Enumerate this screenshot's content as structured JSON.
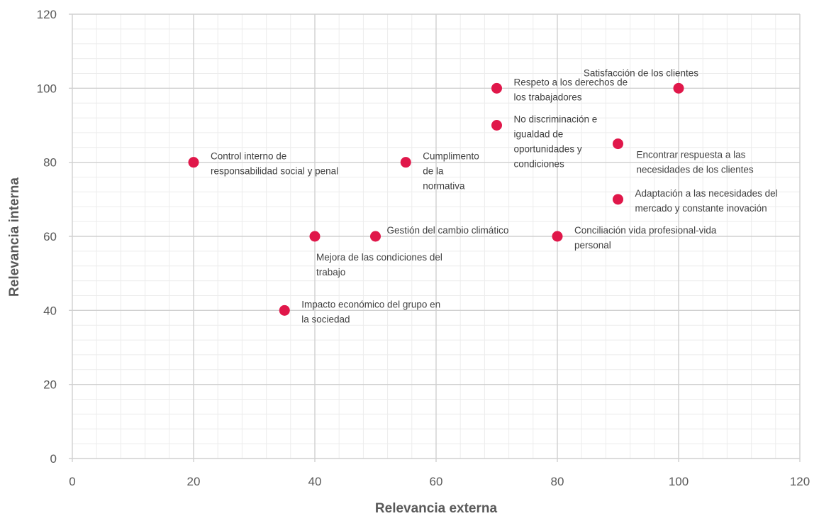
{
  "chart_data": {
    "type": "scatter",
    "xlabel": "Relevancia externa",
    "ylabel": "Relevancia interna",
    "xlim": [
      0,
      120
    ],
    "ylim": [
      0,
      120
    ],
    "x_ticks": [
      "0",
      "20",
      "40",
      "60",
      "80",
      "100",
      "120"
    ],
    "y_ticks": [
      "0",
      "20",
      "40",
      "60",
      "80",
      "100",
      "120"
    ],
    "major_step": 20,
    "minor_step": 4,
    "grid": true,
    "marker_color": "#e0174a",
    "points": [
      {
        "x": 20,
        "y": 80,
        "label": [
          "Control interno de",
          "responsabilidad social y penal"
        ],
        "pos": "right"
      },
      {
        "x": 35,
        "y": 40,
        "label": [
          "Impacto económico del grupo en",
          "la sociedad"
        ],
        "pos": "right"
      },
      {
        "x": 40,
        "y": 60,
        "label": [
          "Mejora de las condiciones del",
          "trabajo"
        ],
        "pos": "below"
      },
      {
        "x": 50,
        "y": 60,
        "label": [
          "Gestión del cambio climático"
        ],
        "pos": "right-up"
      },
      {
        "x": 55,
        "y": 80,
        "label": [
          "Cumplimento",
          "de la",
          "normativa"
        ],
        "pos": "right"
      },
      {
        "x": 70,
        "y": 100,
        "label": [
          "Respeto a los derechos de",
          "los trabajadores"
        ],
        "pos": "right"
      },
      {
        "x": 70,
        "y": 90,
        "label": [
          "No discriminación e",
          "igualdad de",
          "oportunidades y",
          "condiciones"
        ],
        "pos": "right"
      },
      {
        "x": 80,
        "y": 60,
        "label": [
          "Conciliación vida profesional-vida",
          "personal"
        ],
        "pos": "right"
      },
      {
        "x": 90,
        "y": 85,
        "label": [
          "Encontrar respuesta a las",
          "necesidades de los clientes"
        ],
        "pos": "below-right"
      },
      {
        "x": 90,
        "y": 70,
        "label": [
          "Adaptación a las necesidades del",
          "mercado y constante inovación"
        ],
        "pos": "right"
      },
      {
        "x": 100,
        "y": 100,
        "label": [
          "Satisfacción de los clientes"
        ],
        "pos": "above-left"
      }
    ]
  }
}
